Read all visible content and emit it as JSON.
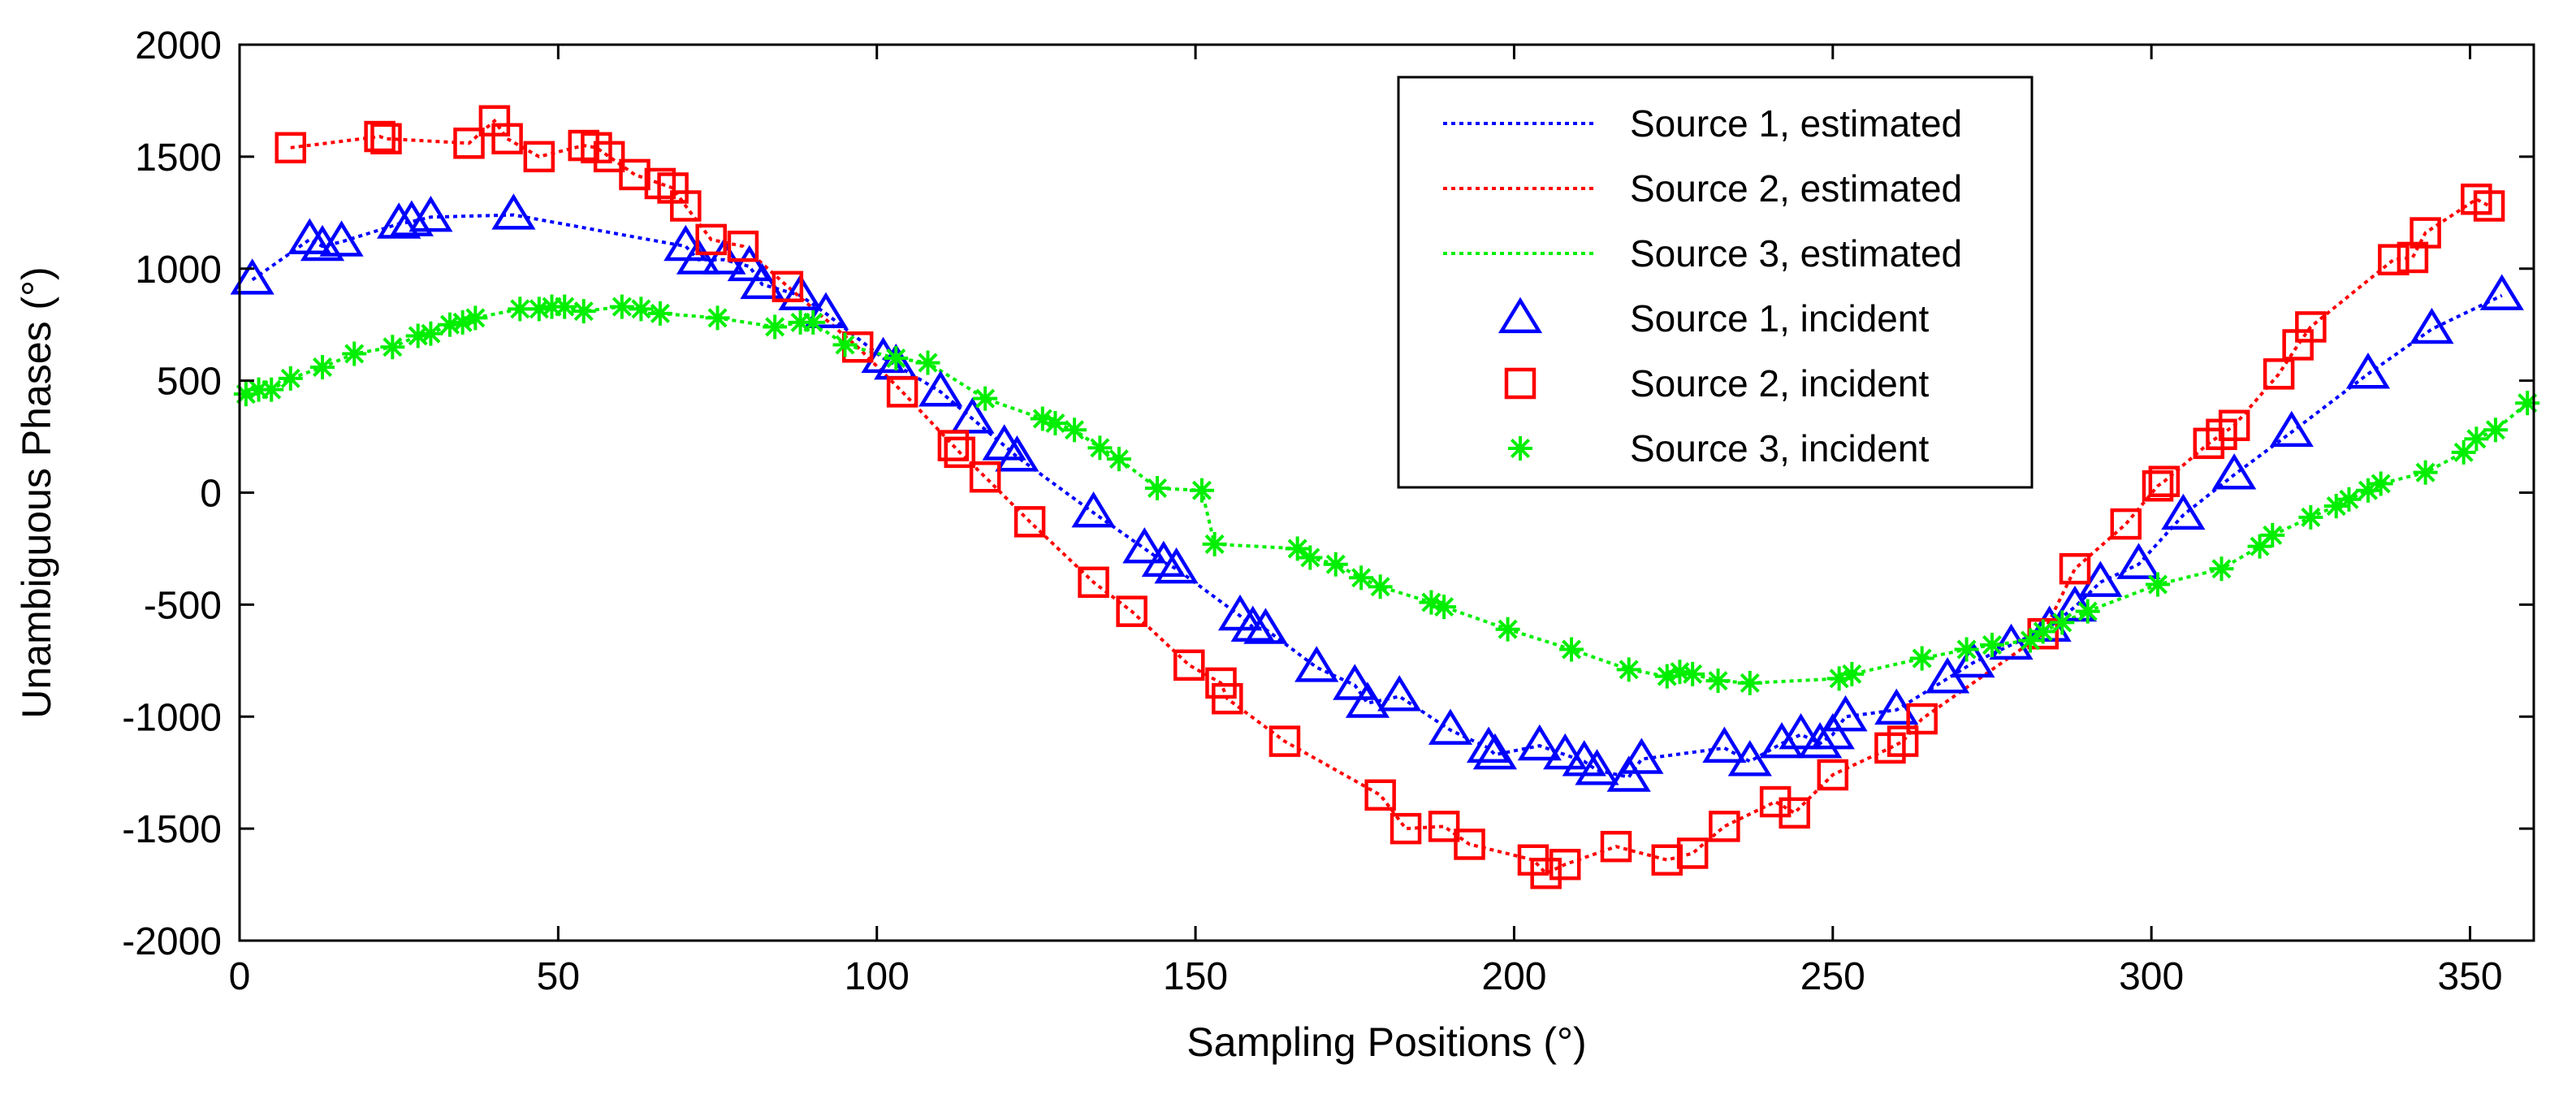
{
  "chart_data": {
    "type": "line",
    "xlabel": "Sampling Positions (°)",
    "ylabel": "Unambiguous Phases (°)",
    "xlim": [
      0,
      360
    ],
    "ylim": [
      -2000,
      2000
    ],
    "x_ticks": [
      0,
      50,
      100,
      150,
      200,
      250,
      300,
      350
    ],
    "y_ticks": [
      -2000,
      -1500,
      -1000,
      -500,
      0,
      500,
      1000,
      1500,
      2000
    ],
    "x_tick_labels": [
      "0",
      "50",
      "100",
      "150",
      "200",
      "250",
      "300",
      "350"
    ],
    "y_tick_labels": [
      "-2000",
      "-1500",
      "-1000",
      "-500",
      "0",
      "500",
      "1000",
      "1500",
      "2000"
    ],
    "grid": false,
    "legend_position": "top-right",
    "legend": [
      "Source 1, estimated",
      "Source 2, estimated",
      "Source 3, estimated",
      "Source 1, incident",
      "Source 2, incident",
      "Source 3, incident"
    ],
    "series": [
      {
        "name": "Source 1",
        "color": "#0000ff",
        "marker": "triangle",
        "x": [
          2,
          11,
          13,
          16,
          25,
          27,
          30,
          43,
          70,
          72,
          76,
          80,
          82,
          88,
          92,
          101,
          103,
          110,
          115,
          120,
          122,
          134,
          142,
          145,
          147,
          157,
          159,
          161,
          169,
          175,
          177,
          182,
          190,
          196,
          197,
          204,
          208,
          211,
          213,
          218,
          220,
          233,
          237,
          242,
          245,
          248,
          250,
          252,
          260,
          268,
          272,
          278,
          284,
          288,
          292,
          298,
          305,
          313,
          322,
          334,
          344,
          355
        ],
        "y": [
          950,
          1130,
          1100,
          1120,
          1200,
          1210,
          1230,
          1240,
          1100,
          1040,
          1040,
          1010,
          930,
          880,
          800,
          600,
          570,
          450,
          330,
          210,
          160,
          -90,
          -250,
          -310,
          -340,
          -550,
          -600,
          -610,
          -780,
          -860,
          -940,
          -910,
          -1060,
          -1140,
          -1170,
          -1130,
          -1170,
          -1200,
          -1240,
          -1270,
          -1190,
          -1140,
          -1200,
          -1120,
          -1080,
          -1120,
          -1080,
          -1000,
          -970,
          -830,
          -760,
          -680,
          -600,
          -510,
          -400,
          -320,
          -100,
          80,
          270,
          530,
          730,
          880
        ]
      },
      {
        "name": "Source 2",
        "color": "#ff0000",
        "marker": "square",
        "x": [
          8,
          22,
          23,
          36,
          40,
          42,
          47,
          54,
          56,
          58,
          62,
          66,
          68,
          70,
          74,
          79,
          86,
          97,
          104,
          112,
          113,
          117,
          124,
          134,
          140,
          149,
          154,
          155,
          164,
          179,
          183,
          189,
          193,
          203,
          205,
          208,
          216,
          224,
          228,
          233,
          241,
          244,
          250,
          259,
          261,
          264,
          283,
          288,
          296,
          301,
          302,
          309,
          311,
          313,
          320,
          323,
          325,
          338,
          341,
          343,
          351,
          353
        ],
        "y": [
          1540,
          1590,
          1580,
          1560,
          1660,
          1580,
          1500,
          1550,
          1540,
          1500,
          1420,
          1380,
          1360,
          1280,
          1130,
          1100,
          920,
          650,
          450,
          210,
          180,
          70,
          -130,
          -400,
          -530,
          -770,
          -850,
          -920,
          -1110,
          -1350,
          -1500,
          -1490,
          -1570,
          -1640,
          -1700,
          -1660,
          -1580,
          -1640,
          -1610,
          -1490,
          -1380,
          -1430,
          -1260,
          -1140,
          -1110,
          -1010,
          -630,
          -340,
          -140,
          30,
          50,
          220,
          260,
          300,
          530,
          660,
          740,
          1040,
          1050,
          1160,
          1310,
          1280
        ]
      },
      {
        "name": "Source 3",
        "color": "#00ee00",
        "marker": "star",
        "x": [
          1,
          3,
          5,
          8,
          13,
          18,
          24,
          28,
          30,
          33,
          35,
          37,
          44,
          47,
          49,
          51,
          54,
          60,
          63,
          66,
          75,
          84,
          88,
          90,
          95,
          103,
          108,
          117,
          126,
          128,
          131,
          135,
          138,
          144,
          151,
          153,
          166,
          168,
          172,
          176,
          179,
          187,
          189,
          199,
          209,
          218,
          224,
          226,
          228,
          232,
          237,
          251,
          253,
          264,
          271,
          275,
          281,
          283,
          286,
          290,
          301,
          311,
          317,
          319,
          325,
          329,
          331,
          334,
          336,
          343,
          349,
          351,
          354,
          359
        ],
        "y": [
          440,
          460,
          460,
          510,
          560,
          620,
          650,
          700,
          710,
          750,
          760,
          780,
          820,
          820,
          830,
          830,
          810,
          830,
          820,
          800,
          780,
          740,
          760,
          760,
          660,
          600,
          580,
          420,
          330,
          310,
          280,
          200,
          150,
          20,
          10,
          -230,
          -250,
          -290,
          -320,
          -380,
          -420,
          -490,
          -510,
          -610,
          -700,
          -790,
          -820,
          -800,
          -810,
          -840,
          -850,
          -830,
          -810,
          -740,
          -700,
          -680,
          -660,
          -620,
          -580,
          -530,
          -410,
          -340,
          -240,
          -190,
          -110,
          -60,
          -30,
          10,
          40,
          90,
          180,
          240,
          280,
          400
        ]
      }
    ]
  }
}
